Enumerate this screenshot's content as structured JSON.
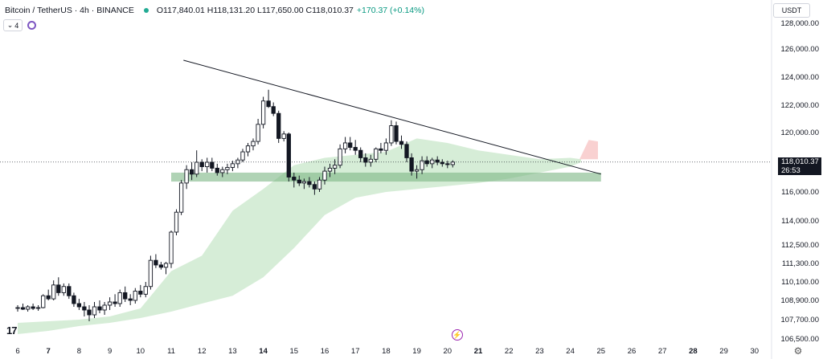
{
  "header": {
    "symbol": "Bitcoin / TetherUS · 4h · BINANCE",
    "ohlc": "O117,840.01 H118,131.20 L117,650.00 C118,010.37",
    "change": "+170.37 (+0.14%)",
    "collapse_count": "4"
  },
  "currency_label": "USDT",
  "last_price": {
    "price": "118,010.37",
    "countdown": "26:53"
  },
  "colors": {
    "up": "#ffffff",
    "down": "#131722",
    "cloud": "#a5d6a7",
    "cloud_red": "#f8c5c5",
    "support": "#7cb584",
    "trendline": "#131722",
    "accent": "#22ab94"
  },
  "icons": [
    "chevron-down-icon",
    "indicator-icon",
    "tradingview-logo-icon",
    "lightning-icon",
    "gear-icon"
  ],
  "chart_data": {
    "type": "candlestick",
    "title": "Bitcoin / TetherUS · 4h · BINANCE",
    "y_ticks": [
      128000,
      126000,
      124000,
      122000,
      120000,
      116000,
      114000,
      112500,
      111300,
      110100,
      108900,
      107700,
      106500
    ],
    "y_tick_labels": [
      "128,000.00",
      "126,000.00",
      "124,000.00",
      "122,000.00",
      "120,000.00",
      "116,000.00",
      "114,000.00",
      "112,500.00",
      "111,300.00",
      "110,100.00",
      "108,900.00",
      "107,700.00",
      "106,500.00"
    ],
    "x_ticks": [
      "6",
      "7",
      "8",
      "9",
      "10",
      "11",
      "12",
      "13",
      "14",
      "15",
      "16",
      "17",
      "18",
      "19",
      "20",
      "21",
      "22",
      "23",
      "24",
      "25",
      "26",
      "27",
      "28",
      "29",
      "30"
    ],
    "x_day_range": [
      6,
      30
    ],
    "last_price": 118010.37,
    "candles": [
      {
        "d": 6.0,
        "o": 108400,
        "h": 108600,
        "l": 108200,
        "c": 108450
      },
      {
        "d": 6.17,
        "o": 108450,
        "h": 108700,
        "l": 108300,
        "c": 108350
      },
      {
        "d": 6.33,
        "o": 108350,
        "h": 108600,
        "l": 108200,
        "c": 108500
      },
      {
        "d": 6.5,
        "o": 108500,
        "h": 108700,
        "l": 108300,
        "c": 108400
      },
      {
        "d": 6.67,
        "o": 108400,
        "h": 108600,
        "l": 108250,
        "c": 108450
      },
      {
        "d": 6.83,
        "o": 108450,
        "h": 109300,
        "l": 108400,
        "c": 109200
      },
      {
        "d": 7.0,
        "o": 109200,
        "h": 109600,
        "l": 108900,
        "c": 109000
      },
      {
        "d": 7.17,
        "o": 109000,
        "h": 110200,
        "l": 108900,
        "c": 109900
      },
      {
        "d": 7.33,
        "o": 109900,
        "h": 110400,
        "l": 109200,
        "c": 109400
      },
      {
        "d": 7.5,
        "o": 109400,
        "h": 110000,
        "l": 109200,
        "c": 109800
      },
      {
        "d": 7.67,
        "o": 109800,
        "h": 110000,
        "l": 109000,
        "c": 109200
      },
      {
        "d": 7.83,
        "o": 109200,
        "h": 109400,
        "l": 108500,
        "c": 108700
      },
      {
        "d": 8.0,
        "o": 108700,
        "h": 109000,
        "l": 108300,
        "c": 108500
      },
      {
        "d": 8.17,
        "o": 108500,
        "h": 108800,
        "l": 107900,
        "c": 108300
      },
      {
        "d": 8.33,
        "o": 108300,
        "h": 108600,
        "l": 107600,
        "c": 108000
      },
      {
        "d": 8.5,
        "o": 108000,
        "h": 108800,
        "l": 107800,
        "c": 108500
      },
      {
        "d": 8.67,
        "o": 108500,
        "h": 108900,
        "l": 108100,
        "c": 108300
      },
      {
        "d": 8.83,
        "o": 108300,
        "h": 108800,
        "l": 108000,
        "c": 108600
      },
      {
        "d": 9.0,
        "o": 108600,
        "h": 109100,
        "l": 108300,
        "c": 108800
      },
      {
        "d": 9.17,
        "o": 108800,
        "h": 109300,
        "l": 108500,
        "c": 108700
      },
      {
        "d": 9.33,
        "o": 108700,
        "h": 109600,
        "l": 108500,
        "c": 109400
      },
      {
        "d": 9.5,
        "o": 109400,
        "h": 109800,
        "l": 108800,
        "c": 109000
      },
      {
        "d": 9.67,
        "o": 109000,
        "h": 109300,
        "l": 108600,
        "c": 108900
      },
      {
        "d": 9.83,
        "o": 108900,
        "h": 109700,
        "l": 108700,
        "c": 109500
      },
      {
        "d": 10.0,
        "o": 109500,
        "h": 109900,
        "l": 109100,
        "c": 109300
      },
      {
        "d": 10.17,
        "o": 109300,
        "h": 110100,
        "l": 109100,
        "c": 109800
      },
      {
        "d": 10.33,
        "o": 109800,
        "h": 111800,
        "l": 109600,
        "c": 111500
      },
      {
        "d": 10.5,
        "o": 111500,
        "h": 111900,
        "l": 111000,
        "c": 111200
      },
      {
        "d": 10.67,
        "o": 111200,
        "h": 111400,
        "l": 110900,
        "c": 111050
      },
      {
        "d": 10.83,
        "o": 111050,
        "h": 111400,
        "l": 110600,
        "c": 111300
      },
      {
        "d": 11.0,
        "o": 111300,
        "h": 113400,
        "l": 111000,
        "c": 113300
      },
      {
        "d": 11.17,
        "o": 113300,
        "h": 114800,
        "l": 113100,
        "c": 114600
      },
      {
        "d": 11.33,
        "o": 114600,
        "h": 116800,
        "l": 114400,
        "c": 116600
      },
      {
        "d": 11.5,
        "o": 116600,
        "h": 117800,
        "l": 116200,
        "c": 117500
      },
      {
        "d": 11.67,
        "o": 117500,
        "h": 118000,
        "l": 116800,
        "c": 117200
      },
      {
        "d": 11.83,
        "o": 117200,
        "h": 118800,
        "l": 117000,
        "c": 118000
      },
      {
        "d": 12.0,
        "o": 118000,
        "h": 118200,
        "l": 117400,
        "c": 117700
      },
      {
        "d": 12.17,
        "o": 117700,
        "h": 118300,
        "l": 117300,
        "c": 118000
      },
      {
        "d": 12.33,
        "o": 118000,
        "h": 118300,
        "l": 117400,
        "c": 117600
      },
      {
        "d": 12.5,
        "o": 117600,
        "h": 117900,
        "l": 117100,
        "c": 117300
      },
      {
        "d": 12.67,
        "o": 117300,
        "h": 117700,
        "l": 117000,
        "c": 117500
      },
      {
        "d": 12.83,
        "o": 117500,
        "h": 117900,
        "l": 117200,
        "c": 117650
      },
      {
        "d": 13.0,
        "o": 117650,
        "h": 118100,
        "l": 117400,
        "c": 117900
      },
      {
        "d": 13.17,
        "o": 117900,
        "h": 118300,
        "l": 117600,
        "c": 118150
      },
      {
        "d": 13.33,
        "o": 118150,
        "h": 118900,
        "l": 118000,
        "c": 118700
      },
      {
        "d": 13.5,
        "o": 118700,
        "h": 119300,
        "l": 118400,
        "c": 119100
      },
      {
        "d": 13.67,
        "o": 119100,
        "h": 119600,
        "l": 118800,
        "c": 119400
      },
      {
        "d": 13.83,
        "o": 119400,
        "h": 121000,
        "l": 119200,
        "c": 120600
      },
      {
        "d": 14.0,
        "o": 120600,
        "h": 122600,
        "l": 120300,
        "c": 122300
      },
      {
        "d": 14.17,
        "o": 122300,
        "h": 123100,
        "l": 121800,
        "c": 121900
      },
      {
        "d": 14.33,
        "o": 121900,
        "h": 122200,
        "l": 121200,
        "c": 121400
      },
      {
        "d": 14.5,
        "o": 121400,
        "h": 121600,
        "l": 119300,
        "c": 119600
      },
      {
        "d": 14.67,
        "o": 119600,
        "h": 120100,
        "l": 119400,
        "c": 119900
      },
      {
        "d": 14.83,
        "o": 119900,
        "h": 120000,
        "l": 116700,
        "c": 117000
      },
      {
        "d": 15.0,
        "o": 117000,
        "h": 117300,
        "l": 116300,
        "c": 116800
      },
      {
        "d": 15.17,
        "o": 116800,
        "h": 117100,
        "l": 116400,
        "c": 116600
      },
      {
        "d": 15.33,
        "o": 116600,
        "h": 116900,
        "l": 116200,
        "c": 116700
      },
      {
        "d": 15.5,
        "o": 116700,
        "h": 117000,
        "l": 116300,
        "c": 116500
      },
      {
        "d": 15.67,
        "o": 116500,
        "h": 116700,
        "l": 115800,
        "c": 116200
      },
      {
        "d": 15.83,
        "o": 116200,
        "h": 117000,
        "l": 116000,
        "c": 116800
      },
      {
        "d": 16.0,
        "o": 116800,
        "h": 117700,
        "l": 116500,
        "c": 117400
      },
      {
        "d": 16.17,
        "o": 117400,
        "h": 117900,
        "l": 117000,
        "c": 117600
      },
      {
        "d": 16.33,
        "o": 117600,
        "h": 118200,
        "l": 117200,
        "c": 117800
      },
      {
        "d": 16.5,
        "o": 117800,
        "h": 119200,
        "l": 117600,
        "c": 118900
      },
      {
        "d": 16.67,
        "o": 118900,
        "h": 119700,
        "l": 118600,
        "c": 119300
      },
      {
        "d": 16.83,
        "o": 119300,
        "h": 119700,
        "l": 118800,
        "c": 119000
      },
      {
        "d": 17.0,
        "o": 119000,
        "h": 119500,
        "l": 118500,
        "c": 118800
      },
      {
        "d": 17.17,
        "o": 118800,
        "h": 119000,
        "l": 118000,
        "c": 118300
      },
      {
        "d": 17.33,
        "o": 118300,
        "h": 118600,
        "l": 117700,
        "c": 118000
      },
      {
        "d": 17.5,
        "o": 118000,
        "h": 118500,
        "l": 117700,
        "c": 118200
      },
      {
        "d": 17.67,
        "o": 118200,
        "h": 119000,
        "l": 118000,
        "c": 118900
      },
      {
        "d": 17.83,
        "o": 118900,
        "h": 119300,
        "l": 118600,
        "c": 118800
      },
      {
        "d": 18.0,
        "o": 118800,
        "h": 119600,
        "l": 118500,
        "c": 119300
      },
      {
        "d": 18.17,
        "o": 119300,
        "h": 120900,
        "l": 119100,
        "c": 120500
      },
      {
        "d": 18.33,
        "o": 120500,
        "h": 120800,
        "l": 119200,
        "c": 119400
      },
      {
        "d": 18.5,
        "o": 119400,
        "h": 119800,
        "l": 118900,
        "c": 119200
      },
      {
        "d": 18.67,
        "o": 119200,
        "h": 119400,
        "l": 118000,
        "c": 118300
      },
      {
        "d": 18.83,
        "o": 118300,
        "h": 118600,
        "l": 117100,
        "c": 117400
      },
      {
        "d": 19.0,
        "o": 117400,
        "h": 117800,
        "l": 116900,
        "c": 117500
      },
      {
        "d": 19.17,
        "o": 117500,
        "h": 118400,
        "l": 117200,
        "c": 118100
      },
      {
        "d": 19.33,
        "o": 118100,
        "h": 118400,
        "l": 117700,
        "c": 117900
      },
      {
        "d": 19.5,
        "o": 117900,
        "h": 118300,
        "l": 117600,
        "c": 118150
      },
      {
        "d": 19.67,
        "o": 118150,
        "h": 118400,
        "l": 117800,
        "c": 118000
      },
      {
        "d": 19.83,
        "o": 118000,
        "h": 118200,
        "l": 117700,
        "c": 117900
      },
      {
        "d": 20.0,
        "o": 117900,
        "h": 118100,
        "l": 117600,
        "c": 117840
      },
      {
        "d": 20.17,
        "o": 117840.01,
        "h": 118131.2,
        "l": 117650.0,
        "c": 118010.37
      }
    ],
    "cloud_upper": [
      [
        6,
        107500
      ],
      [
        7,
        107600
      ],
      [
        8,
        107700
      ],
      [
        9,
        107900
      ],
      [
        10,
        108400
      ],
      [
        11,
        110800
      ],
      [
        12,
        111800
      ],
      [
        13,
        114700
      ],
      [
        14,
        116200
      ],
      [
        15,
        117800
      ],
      [
        16,
        118300
      ],
      [
        17,
        118500
      ],
      [
        18,
        118700
      ],
      [
        19,
        119600
      ],
      [
        20,
        119300
      ],
      [
        21,
        118800
      ],
      [
        22,
        118500
      ],
      [
        23,
        118200
      ],
      [
        24,
        118300
      ],
      [
        24.35,
        118200
      ]
    ],
    "cloud_lower": [
      [
        6,
        106800
      ],
      [
        7,
        107000
      ],
      [
        8,
        107300
      ],
      [
        9,
        107500
      ],
      [
        10,
        107800
      ],
      [
        11,
        108200
      ],
      [
        12,
        108700
      ],
      [
        13,
        109200
      ],
      [
        14,
        110400
      ],
      [
        15,
        112300
      ],
      [
        16,
        114400
      ],
      [
        17,
        115600
      ],
      [
        18,
        116000
      ],
      [
        19,
        116200
      ],
      [
        20,
        116400
      ],
      [
        21,
        116600
      ],
      [
        22,
        116900
      ],
      [
        23,
        117300
      ],
      [
        24,
        117700
      ],
      [
        24.35,
        118000
      ]
    ],
    "cloud_red": [
      [
        24.3,
        118200
      ],
      [
        24.6,
        119500
      ],
      [
        24.9,
        119400
      ],
      [
        24.9,
        118200
      ]
    ],
    "support_zone": {
      "from_day": 11.0,
      "to_day": 25.0,
      "low": 116700,
      "high": 117300
    },
    "trendline": {
      "from": [
        11.4,
        125200
      ],
      "to": [
        25.0,
        117200
      ]
    }
  }
}
